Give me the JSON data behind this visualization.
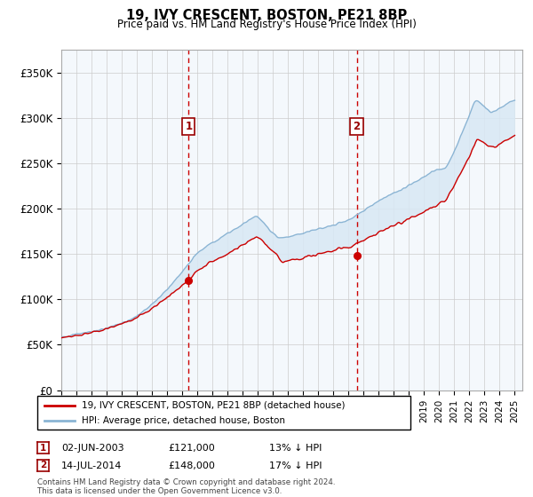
{
  "title": "19, IVY CRESCENT, BOSTON, PE21 8BP",
  "subtitle": "Price paid vs. HM Land Registry's House Price Index (HPI)",
  "ylim": [
    0,
    375000
  ],
  "yticks": [
    0,
    50000,
    100000,
    150000,
    200000,
    250000,
    300000,
    350000
  ],
  "ytick_labels": [
    "£0",
    "£50K",
    "£100K",
    "£150K",
    "£200K",
    "£250K",
    "£300K",
    "£350K"
  ],
  "hpi_color": "#8ab4d4",
  "price_color": "#cc0000",
  "vline_color": "#cc0000",
  "shade_color": "#d8e8f4",
  "grid_color": "#cccccc",
  "transaction1_year": 2003.42,
  "transaction1_price": 121000,
  "transaction2_year": 2014.54,
  "transaction2_price": 148000,
  "legend_label1": "19, IVY CRESCENT, BOSTON, PE21 8BP (detached house)",
  "legend_label2": "HPI: Average price, detached house, Boston",
  "footnote1_date": "02-JUN-2003",
  "footnote1_price": "£121,000",
  "footnote1_hpi": "13% ↓ HPI",
  "footnote2_date": "14-JUL-2014",
  "footnote2_price": "£148,000",
  "footnote2_hpi": "17% ↓ HPI",
  "copyright_text": "Contains HM Land Registry data © Crown copyright and database right 2024.\nThis data is licensed under the Open Government Licence v3.0.",
  "background_color": "#ffffff"
}
